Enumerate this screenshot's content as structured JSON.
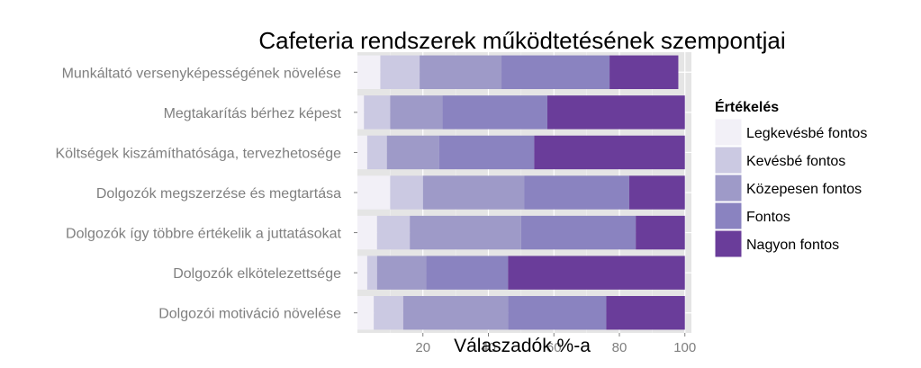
{
  "chart_data": {
    "type": "bar",
    "orientation": "horizontal",
    "stacked": true,
    "title": "Cafeteria rendszerek működtetésének szempontjai",
    "xlabel": "Válaszadók %-a",
    "ylabel": "",
    "xlim": [
      0,
      102
    ],
    "xticks": [
      "20",
      "40",
      "60",
      "80",
      "100"
    ],
    "grid": true,
    "legend_position": "right",
    "legend_title": "Értékelés",
    "categories": [
      "Munkáltató versenyképességének növelése",
      "Megtakarítás bérhez képest",
      "Költségek kiszámíthatósága, tervezhetosége",
      "Dolgozók megszerzése és megtartása",
      "Dolgozók így többre értékelik a juttatásokat",
      "Dolgozók elkötelezettsége",
      "Dolgozói motiváció növelése"
    ],
    "series": [
      {
        "name": "Legkevésbé fontos",
        "color": "#f2f0f7",
        "values": [
          7,
          2,
          3,
          10,
          6,
          3,
          5
        ]
      },
      {
        "name": "Kevésbé fontos",
        "color": "#cbc9e2",
        "values": [
          12,
          8,
          6,
          10,
          10,
          3,
          9
        ]
      },
      {
        "name": "Közepesen fontos",
        "color": "#9e9ac8",
        "values": [
          25,
          16,
          16,
          31,
          34,
          15,
          32
        ]
      },
      {
        "name": "Fontos",
        "color": "#8a83c0",
        "values": [
          33,
          32,
          29,
          32,
          35,
          25,
          30
        ]
      },
      {
        "name": "Nagyon fontos",
        "color": "#6a3d9a",
        "values": [
          21,
          42,
          46,
          17,
          15,
          54,
          24
        ]
      }
    ]
  }
}
